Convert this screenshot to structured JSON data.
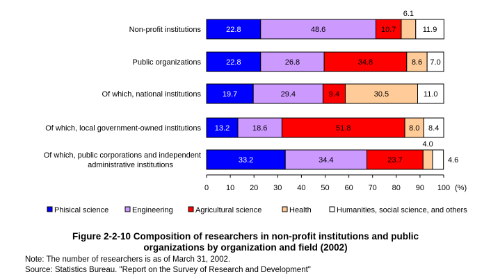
{
  "chart_data": {
    "type": "bar",
    "orientation": "horizontal",
    "stacked": true,
    "categories": [
      "Non-profit institutions",
      "Public organizations",
      "Of which, national institutions",
      "Of which, local government-owned institutions",
      "Of which, public corporations and independent administrative institutions"
    ],
    "series": [
      {
        "name": "Phisical science",
        "color": "#0000ff",
        "label_color": "#ffffff",
        "values": [
          22.8,
          22.8,
          19.7,
          13.2,
          33.2
        ]
      },
      {
        "name": "Engineering",
        "color": "#cc99ff",
        "label_color": "#000000",
        "values": [
          48.6,
          26.8,
          29.4,
          18.6,
          34.4
        ]
      },
      {
        "name": "Agricultural science",
        "color": "#ff0000",
        "label_color": "#000000",
        "values": [
          10.7,
          34.8,
          9.4,
          51.8,
          23.7
        ]
      },
      {
        "name": "Health",
        "color": "#ffcc99",
        "label_color": "#000000",
        "values": [
          6.1,
          8.6,
          30.5,
          8.0,
          4.0
        ]
      },
      {
        "name": "Humanities, social science, and others",
        "color": "#ffffff",
        "label_color": "#000000",
        "values": [
          11.9,
          7.0,
          11.0,
          8.4,
          4.6
        ]
      }
    ],
    "x_ticks": [
      "0",
      "10",
      "20",
      "30",
      "40",
      "50",
      "60",
      "70",
      "80",
      "90",
      "100"
    ],
    "x_unit": "(%)",
    "xlim": [
      0,
      100
    ],
    "grid": false,
    "legend_position": "bottom"
  },
  "caption": {
    "line1": "Figure 2-2-10  Composition of researchers in non-profit institutions and public",
    "line2": "organizations by organization and field (2002)"
  },
  "notes": {
    "note": "Note: The number of researchers is as of March 31, 2002.",
    "source": "Source: Statistics Bureau. \"Report on the Survey of Research and Development\""
  }
}
